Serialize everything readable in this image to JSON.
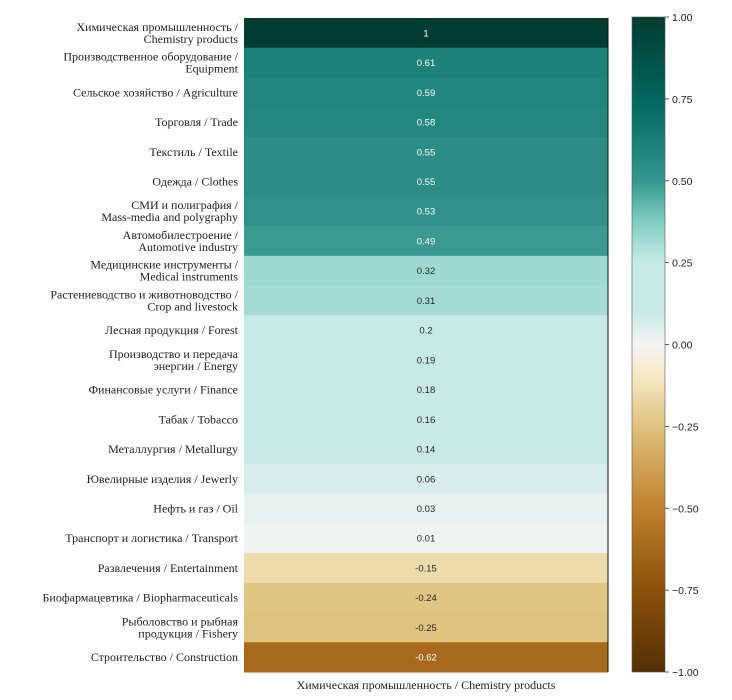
{
  "chart_data": {
    "type": "heatmap",
    "title": "",
    "xlabel": "",
    "ylabel": "",
    "columns": [
      "Химическая промышленность / Chemistry products"
    ],
    "rows": [
      {
        "label": [
          "Химическая промышленность /",
          "Chemistry products"
        ],
        "value": 1,
        "text": "1"
      },
      {
        "label": [
          "Производственное оборудование /",
          "Equipment"
        ],
        "value": 0.61,
        "text": "0.61"
      },
      {
        "label": [
          "Сельское хозяйство / Agriculture"
        ],
        "value": 0.59,
        "text": "0.59"
      },
      {
        "label": [
          "Торговля / Trade"
        ],
        "value": 0.58,
        "text": "0.58"
      },
      {
        "label": [
          "Текстиль / Textile"
        ],
        "value": 0.55,
        "text": "0.55"
      },
      {
        "label": [
          "Одежда / Clothes"
        ],
        "value": 0.55,
        "text": "0.55"
      },
      {
        "label": [
          "СМИ и полиграфия /",
          "Mass-media and polygraphy"
        ],
        "value": 0.53,
        "text": "0.53"
      },
      {
        "label": [
          "Автомобилестроение /",
          "Automotive industry"
        ],
        "value": 0.49,
        "text": "0.49"
      },
      {
        "label": [
          "Медицинские инструменты /",
          "Medical instruments"
        ],
        "value": 0.32,
        "text": "0.32"
      },
      {
        "label": [
          "Растениеводство и животноводство /",
          "Crop and livestock"
        ],
        "value": 0.31,
        "text": "0.31"
      },
      {
        "label": [
          "Лесная продукция / Forest"
        ],
        "value": 0.2,
        "text": "0.2"
      },
      {
        "label": [
          "Производство и передача",
          "энергии / Energy"
        ],
        "value": 0.19,
        "text": "0.19"
      },
      {
        "label": [
          "Финансовые услуги / Finance"
        ],
        "value": 0.18,
        "text": "0.18"
      },
      {
        "label": [
          "Табак / Tobacco"
        ],
        "value": 0.16,
        "text": "0.16"
      },
      {
        "label": [
          "Металлургия / Metallurgy"
        ],
        "value": 0.14,
        "text": "0.14"
      },
      {
        "label": [
          "Ювелирные изделия / Jewerly"
        ],
        "value": 0.06,
        "text": "0.06"
      },
      {
        "label": [
          "Нефть и газ / Oil"
        ],
        "value": 0.03,
        "text": "0.03"
      },
      {
        "label": [
          "Транспорт и логистика / Transport"
        ],
        "value": 0.01,
        "text": "0.01"
      },
      {
        "label": [
          "Развлечения / Entertainment"
        ],
        "value": -0.15,
        "text": "-0.15"
      },
      {
        "label": [
          "Биофармацевтика / Biopharmaceuticals"
        ],
        "value": -0.24,
        "text": "-0.24"
      },
      {
        "label": [
          "Рыболовство и рыбная",
          "продукция / Fishery"
        ],
        "value": -0.25,
        "text": "-0.25"
      },
      {
        "label": [
          "Строительство / Construction"
        ],
        "value": -0.62,
        "text": "-0.62"
      }
    ],
    "colorbar": {
      "vmin": -1.0,
      "vmax": 1.0,
      "ticks": [
        1.0,
        0.75,
        0.5,
        0.25,
        0.0,
        -0.25,
        -0.5,
        -0.75,
        -1.0
      ],
      "tick_labels": [
        "1.00",
        "0.75",
        "0.50",
        "0.25",
        "0.00",
        "−0.25",
        "−0.50",
        "−0.75",
        "−1.00"
      ],
      "colormap": "BrBG",
      "colormap_stops": [
        {
          "v": -1.0,
          "color": "#543005"
        },
        {
          "v": -0.75,
          "color": "#8c510a"
        },
        {
          "v": -0.5,
          "color": "#bf812d"
        },
        {
          "v": -0.25,
          "color": "#dfc27d"
        },
        {
          "v": -0.1,
          "color": "#f6e8c3"
        },
        {
          "v": 0.0,
          "color": "#f5f5f5"
        },
        {
          "v": 0.1,
          "color": "#c7eae5"
        },
        {
          "v": 0.25,
          "color": "#c7eae5"
        },
        {
          "v": 0.375,
          "color": "#80cdc1"
        },
        {
          "v": 0.5,
          "color": "#35978f"
        },
        {
          "v": 0.75,
          "color": "#01665e"
        },
        {
          "v": 1.0,
          "color": "#003c30"
        }
      ]
    },
    "grid": false,
    "legend": "colorbar-right"
  }
}
